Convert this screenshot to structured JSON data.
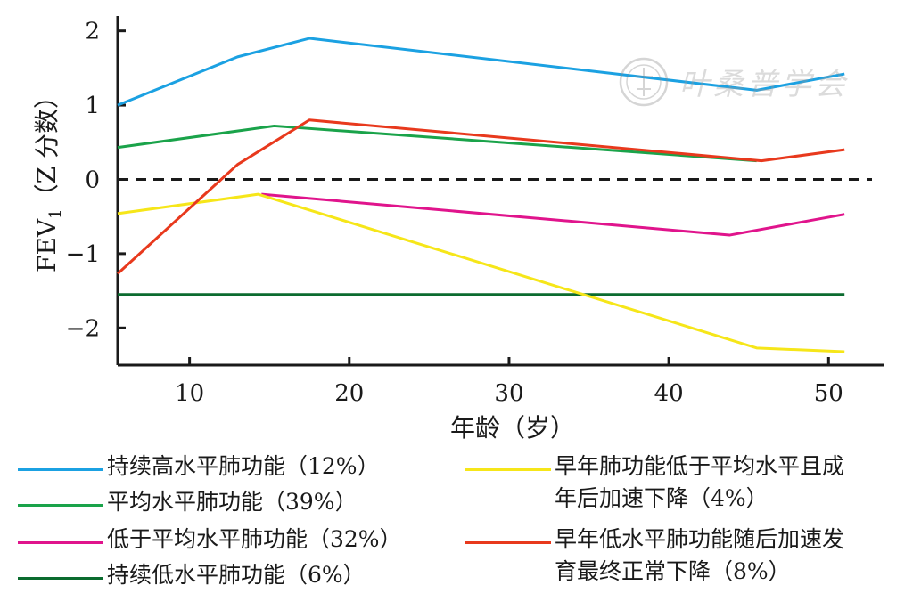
{
  "chart_data": {
    "type": "line",
    "title": "",
    "xlabel": "年龄（岁）",
    "ylabel": "FEV",
    "ylabel_subscript": "1",
    "ylabel_suffix": "（Z 分数）",
    "xlim": [
      5.5,
      53.5
    ],
    "ylim": [
      -2.5,
      2.2
    ],
    "xticks": [
      10,
      20,
      30,
      40,
      50
    ],
    "yticks": [
      2,
      1,
      0,
      -1,
      -2
    ],
    "ytick_labels": [
      "2",
      "1",
      "0",
      "−1",
      "−2"
    ],
    "reference_line": {
      "y": 0,
      "style": "dashed"
    },
    "grid": false,
    "legend_position": "bottom",
    "series": [
      {
        "name": "持续高水平肺功能（12%）",
        "color": "#1ba1e2",
        "x": [
          5.5,
          13,
          17.5,
          45.5,
          51
        ],
        "y": [
          1.0,
          1.65,
          1.9,
          1.2,
          1.42
        ]
      },
      {
        "name": "平均水平肺功能（39%）",
        "color": "#1aa34a",
        "x": [
          5.5,
          15.3,
          45.5
        ],
        "y": [
          0.43,
          0.72,
          0.25
        ]
      },
      {
        "name": "低于平均水平肺功能（32%）",
        "color": "#e0148c",
        "x": [
          14.5,
          43.8,
          51
        ],
        "y": [
          -0.2,
          -0.75,
          -0.47
        ]
      },
      {
        "name": "持续低水平肺功能（6%）",
        "color": "#0b6b2f",
        "x": [
          5.5,
          51
        ],
        "y": [
          -1.55,
          -1.55
        ]
      },
      {
        "name": "早年肺功能低于平均水平且成年后加速下降（4%）",
        "color": "#f6e619",
        "x": [
          5.5,
          14.3,
          45.5,
          51
        ],
        "y": [
          -0.46,
          -0.2,
          -2.27,
          -2.32
        ]
      },
      {
        "name": "早年低水平肺功能随后加速发育最终正常下降（8%）",
        "color": "#e8391d",
        "x": [
          5.5,
          13,
          17.5,
          45.8,
          51
        ],
        "y": [
          -1.27,
          0.2,
          0.8,
          0.25,
          0.4
        ]
      }
    ]
  },
  "watermark": {
    "text": "叶桑普学会"
  },
  "legend": [
    {
      "lines": [
        "持续高水平肺功能（12%）"
      ],
      "color": "#1ba1e2"
    },
    {
      "lines": [
        "平均水平肺功能（39%）"
      ],
      "color": "#1aa34a"
    },
    {
      "lines": [
        "低于平均水平肺功能（32%）"
      ],
      "color": "#e0148c"
    },
    {
      "lines": [
        "持续低水平肺功能（6%）"
      ],
      "color": "#0b6b2f"
    },
    {
      "lines": [
        "早年肺功能低于平均水平且成",
        "年后加速下降（4%）"
      ],
      "color": "#f6e619"
    },
    {
      "lines": [
        "早年低水平肺功能随后加速发",
        "育最终正常下降（8%）"
      ],
      "color": "#e8391d"
    }
  ]
}
